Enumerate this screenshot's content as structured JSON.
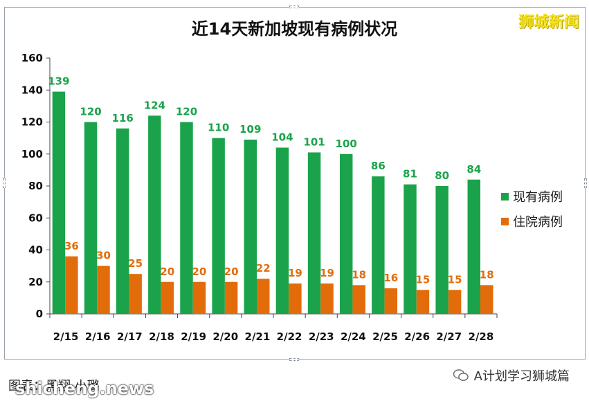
{
  "brand": "狮城新闻",
  "caption": "图表：黑翔·小璐",
  "watermark_left": "shicheng.news",
  "watermark_right": "A计划学习狮城篇",
  "colors": {
    "series_current": "#1aa34a",
    "series_hospital": "#e36c0a"
  },
  "chart_data": {
    "type": "bar",
    "title": "近14天新加坡现有病例状况",
    "categories": [
      "2/15",
      "2/16",
      "2/17",
      "2/18",
      "2/19",
      "2/20",
      "2/21",
      "2/22",
      "2/23",
      "2/24",
      "2/25",
      "2/26",
      "2/27",
      "2/28"
    ],
    "series": [
      {
        "name": "现有病例",
        "values": [
          139,
          120,
          116,
          124,
          120,
          110,
          109,
          104,
          101,
          100,
          86,
          81,
          80,
          84
        ]
      },
      {
        "name": "住院病例",
        "values": [
          36,
          30,
          25,
          20,
          20,
          20,
          22,
          19,
          19,
          18,
          16,
          15,
          15,
          18
        ]
      }
    ],
    "ylim": [
      0,
      160
    ],
    "yticks": [
      0,
      20,
      40,
      60,
      80,
      100,
      120,
      140,
      160
    ],
    "grid": false,
    "legend": "right"
  }
}
